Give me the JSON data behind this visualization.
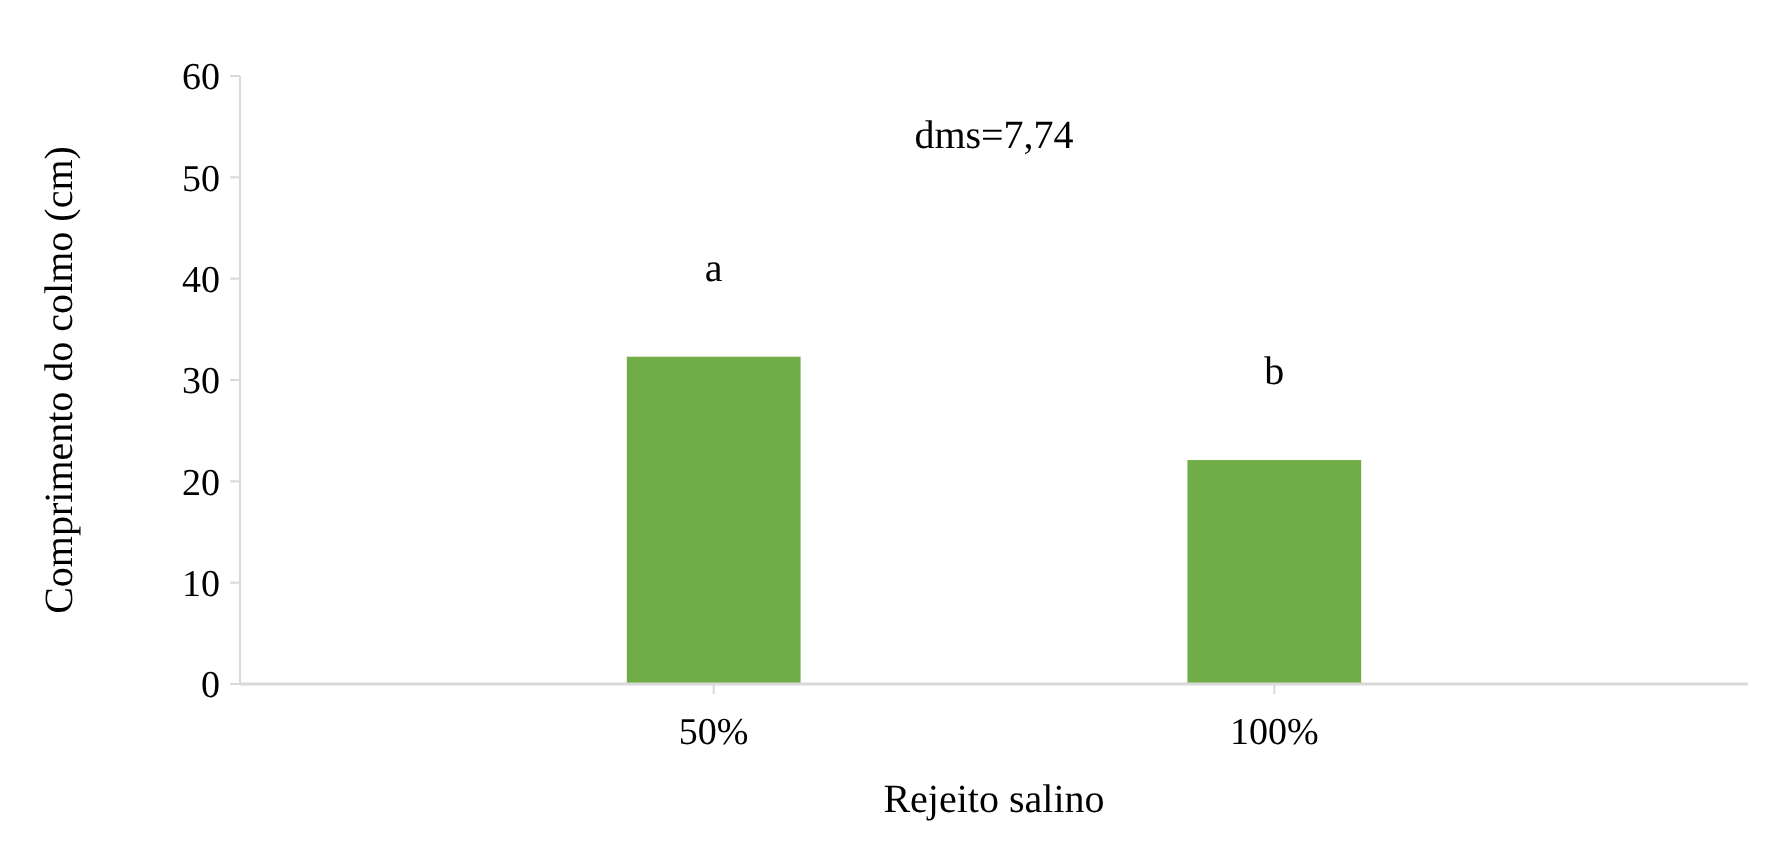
{
  "chart_data": {
    "type": "bar",
    "categories": [
      "50%",
      "100%"
    ],
    "values": [
      32.3,
      22.1
    ],
    "color": "#70ad47",
    "xlabel": "Rejeito salino",
    "ylabel": "Comprimento do colmo (cm)",
    "ylim": [
      0,
      60
    ],
    "yticks": [
      0,
      10,
      20,
      30,
      40,
      50,
      60
    ],
    "grid": false,
    "annotations": [
      "a",
      "b",
      "dms=7,74"
    ]
  }
}
